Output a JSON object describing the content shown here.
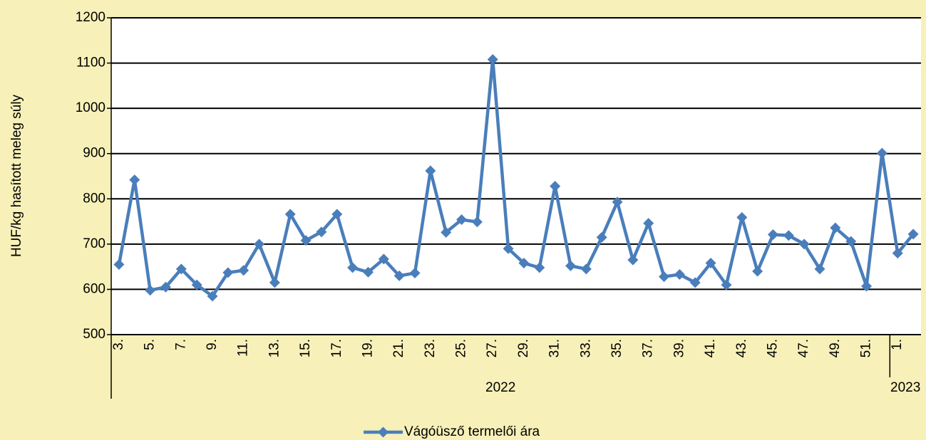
{
  "chart_data": {
    "type": "line",
    "y_label": "HUF/kg hasított meleg súly",
    "categories": [
      "3.",
      null,
      "5.",
      null,
      "7.",
      null,
      "9.",
      null,
      "11.",
      null,
      "13.",
      null,
      "15.",
      null,
      "17.",
      null,
      "19.",
      null,
      "21.",
      null,
      "23.",
      null,
      "25.",
      null,
      "27.",
      null,
      "29.",
      null,
      "31.",
      null,
      "33.",
      null,
      "35.",
      null,
      "37.",
      null,
      "39.",
      null,
      "41.",
      null,
      "43.",
      null,
      "45.",
      null,
      "47.",
      null,
      "49.",
      null,
      "51.",
      null,
      "1.",
      null
    ],
    "x_groups": [
      {
        "label": "2022",
        "count": 50
      },
      {
        "label": "2023",
        "count": 2
      }
    ],
    "series": [
      {
        "name": "Vágóüsző termelői ára",
        "color": "#4a7ebb",
        "values": [
          655,
          842,
          598,
          605,
          645,
          610,
          585,
          637,
          642,
          700,
          615,
          766,
          708,
          727,
          766,
          648,
          638,
          667,
          630,
          636,
          862,
          726,
          754,
          749,
          1108,
          690,
          658,
          648,
          828,
          652,
          645,
          715,
          793,
          665,
          746,
          628,
          633,
          615,
          658,
          610,
          759,
          640,
          721,
          719,
          700,
          645,
          736,
          706,
          607,
          901,
          680,
          722
        ]
      }
    ],
    "ylim": [
      500,
      1200
    ],
    "yticks": [
      500,
      600,
      700,
      800,
      900,
      1000,
      1100,
      1200
    ],
    "grid": true,
    "legend": "bottom"
  }
}
